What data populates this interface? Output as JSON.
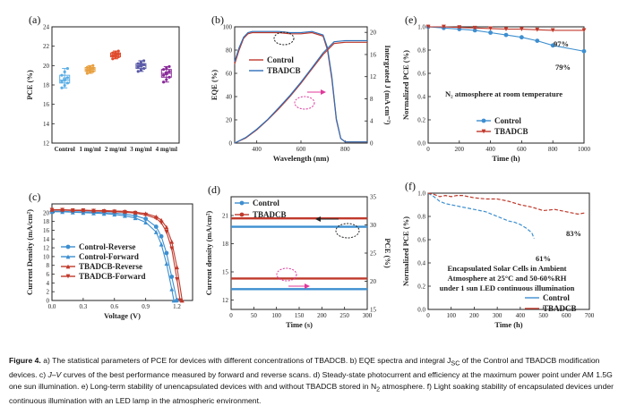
{
  "caption": {
    "lead": "Figure 4.",
    "text": "a) The statistical parameters of PCE for devices with different concentrations of TBADCB. b) EQE spectra and integral J<sub>SC</sub> of the Control and TBADCB modification devices. c) <i>J–V</i> curves of the best performance measured by forward and reverse scans. d) Steady-state photocurrent and efficiency at the maximum power point under AM 1.5G one sun illumination. e) Long-term stability of unencapsulated devices with and without TBADCB stored in N<sub>2</sub> atmosphere. f) Light soaking stability of encapsulated devices under continuous illumination with an LED lamp in the atmospheric environment."
  },
  "chart_data": [
    {
      "id": "a",
      "panel_label": "(a)",
      "type": "box",
      "ylabel": "PCE (%)",
      "ylim": [
        12,
        24
      ],
      "yticks": [
        12,
        14,
        16,
        18,
        20,
        22,
        24
      ],
      "categories": [
        "Control",
        "1 mg/ml",
        "2 mg/ml",
        "3 mg/ml",
        "4 mg/ml"
      ],
      "colors": [
        "#5aaee6",
        "#e8a040",
        "#e04a2c",
        "#5a5aa8",
        "#8a2a9a"
      ],
      "boxes": [
        {
          "q1": 18.2,
          "median": 18.5,
          "q3": 19.0,
          "min": 17.7,
          "max": 19.7,
          "mean": 18.6
        },
        {
          "q1": 19.4,
          "median": 19.6,
          "q3": 19.8,
          "min": 19.2,
          "max": 20.0,
          "mean": 19.6
        },
        {
          "q1": 20.9,
          "median": 21.1,
          "q3": 21.3,
          "min": 20.7,
          "max": 21.5,
          "mean": 21.1
        },
        {
          "q1": 19.7,
          "median": 20.0,
          "q3": 20.2,
          "min": 19.4,
          "max": 20.5,
          "mean": 20.0
        },
        {
          "q1": 18.8,
          "median": 19.2,
          "q3": 19.6,
          "min": 18.3,
          "max": 19.9,
          "mean": 19.2
        }
      ]
    },
    {
      "id": "b",
      "panel_label": "(b)",
      "type": "line",
      "xlabel": "Wavelength (nm)",
      "ylabel": "EQE (%)",
      "ylabel_right": "Intergrated J (mA cm⁻²)",
      "xlim": [
        300,
        900
      ],
      "xticks": [
        400,
        600,
        800
      ],
      "ylim": [
        0,
        100
      ],
      "yticks": [
        0,
        20,
        40,
        60,
        80,
        100
      ],
      "ylim_right": [
        0,
        21
      ],
      "yticks_right": [
        0,
        4,
        8,
        12,
        16,
        20
      ],
      "legend": [
        "Control",
        "TBADCB"
      ],
      "series": [
        {
          "name": "Control",
          "color": "#c0392b",
          "axis": "left",
          "x": [
            300,
            320,
            340,
            360,
            380,
            400,
            450,
            500,
            550,
            600,
            650,
            700,
            720,
            740,
            760,
            780,
            800,
            850,
            900
          ],
          "y": [
            68,
            80,
            90,
            94,
            95,
            95,
            95,
            95,
            94,
            94,
            95,
            92,
            80,
            55,
            20,
            4,
            1,
            1,
            1
          ]
        },
        {
          "name": "TBADCB",
          "color": "#2e6fb8",
          "axis": "left",
          "x": [
            300,
            320,
            340,
            360,
            380,
            400,
            450,
            500,
            550,
            600,
            650,
            700,
            720,
            740,
            760,
            780,
            800,
            850,
            900
          ],
          "y": [
            70,
            82,
            91,
            95,
            96,
            96,
            96,
            96,
            95,
            95,
            96,
            93,
            82,
            57,
            21,
            4,
            1,
            1,
            1
          ]
        },
        {
          "name": "Control J",
          "color": "#c0392b",
          "axis": "right",
          "x": [
            300,
            350,
            400,
            450,
            500,
            550,
            600,
            650,
            700,
            750,
            800,
            900
          ],
          "y": [
            0,
            0.9,
            2.4,
            4.2,
            6.2,
            8.4,
            10.8,
            13.4,
            16.0,
            18.0,
            18.2,
            18.2
          ]
        },
        {
          "name": "TBADCB J",
          "color": "#2e6fb8",
          "axis": "right",
          "x": [
            300,
            350,
            400,
            450,
            500,
            550,
            600,
            650,
            700,
            750,
            800,
            900
          ],
          "y": [
            0,
            1.0,
            2.5,
            4.3,
            6.4,
            8.6,
            11.0,
            13.6,
            16.3,
            18.3,
            18.5,
            18.5
          ]
        }
      ]
    },
    {
      "id": "c",
      "panel_label": "(c)",
      "type": "line",
      "xlabel": "Voltage (V)",
      "ylabel": "Current Density (mA/cm²)",
      "xlim": [
        0,
        1.35
      ],
      "xticks": [
        0.0,
        0.3,
        0.6,
        0.9,
        1.2
      ],
      "ylim": [
        0,
        22
      ],
      "yticks": [
        0,
        2,
        4,
        6,
        8,
        10,
        12,
        14,
        16,
        18,
        20
      ],
      "legend": [
        "Control-Reverse",
        "Control-Forward",
        "TBADCB-Reverse",
        "TBADCB-Forward"
      ],
      "series": [
        {
          "name": "Control-Reverse",
          "color": "#3d8fd0",
          "marker": "circle",
          "x": [
            0,
            0.1,
            0.2,
            0.3,
            0.4,
            0.5,
            0.6,
            0.7,
            0.8,
            0.9,
            1.0,
            1.05,
            1.1,
            1.15,
            1.2
          ],
          "y": [
            20.3,
            20.3,
            20.2,
            20.2,
            20.1,
            20.0,
            19.9,
            19.7,
            19.3,
            18.6,
            16.8,
            14.6,
            10.8,
            5.4,
            0
          ]
        },
        {
          "name": "Control-Forward",
          "color": "#3d8fd0",
          "marker": "triangle",
          "x": [
            0,
            0.1,
            0.2,
            0.3,
            0.4,
            0.5,
            0.6,
            0.7,
            0.8,
            0.9,
            1.0,
            1.05,
            1.1,
            1.15,
            1.17
          ],
          "y": [
            20.2,
            20.2,
            20.1,
            20.0,
            19.9,
            19.8,
            19.6,
            19.3,
            18.8,
            17.8,
            15.6,
            12.8,
            8.4,
            2.6,
            0
          ]
        },
        {
          "name": "TBADCB-Reverse",
          "color": "#c0392b",
          "marker": "triangle",
          "x": [
            0,
            0.1,
            0.2,
            0.3,
            0.4,
            0.5,
            0.6,
            0.7,
            0.8,
            0.9,
            1.0,
            1.05,
            1.1,
            1.15,
            1.2,
            1.25
          ],
          "y": [
            20.7,
            20.7,
            20.6,
            20.6,
            20.5,
            20.5,
            20.4,
            20.3,
            20.1,
            19.8,
            19.1,
            18.3,
            16.7,
            13.4,
            7.6,
            0
          ]
        },
        {
          "name": "TBADCB-Forward",
          "color": "#c0392b",
          "marker": "triangle-down",
          "x": [
            0,
            0.1,
            0.2,
            0.3,
            0.4,
            0.5,
            0.6,
            0.7,
            0.8,
            0.9,
            1.0,
            1.05,
            1.1,
            1.15,
            1.2,
            1.23
          ],
          "y": [
            20.6,
            20.6,
            20.5,
            20.5,
            20.4,
            20.3,
            20.2,
            20.1,
            19.9,
            19.5,
            18.7,
            17.7,
            15.6,
            11.8,
            4.8,
            0
          ]
        }
      ]
    },
    {
      "id": "d",
      "panel_label": "(d)",
      "type": "line",
      "xlabel": "Time (s)",
      "ylabel": "Current density (mA/cm²)",
      "ylabel_right": "PCE (%)",
      "xlim": [
        0,
        300
      ],
      "xticks": [
        0,
        50,
        100,
        150,
        200,
        250,
        300
      ],
      "ylim": [
        11,
        23
      ],
      "yticks": [
        12,
        15,
        18,
        21
      ],
      "ylim_right": [
        15,
        35
      ],
      "yticks_right": [
        15,
        20,
        25,
        30,
        35
      ],
      "legend": [
        "Control",
        "TBADCB"
      ],
      "series": [
        {
          "name": "Control current",
          "color": "#3d8fd0",
          "axis": "left",
          "x": [
            0,
            300
          ],
          "y": [
            19.8,
            19.8
          ]
        },
        {
          "name": "TBADCB current",
          "color": "#c0392b",
          "axis": "left",
          "x": [
            0,
            300
          ],
          "y": [
            20.7,
            20.7
          ]
        },
        {
          "name": "Control PCE",
          "color": "#3d8fd0",
          "axis": "right",
          "x": [
            0,
            300
          ],
          "y": [
            18.6,
            18.6
          ]
        },
        {
          "name": "TBADCB PCE",
          "color": "#c0392b",
          "axis": "right",
          "x": [
            0,
            300
          ],
          "y": [
            20.5,
            20.5
          ]
        }
      ]
    },
    {
      "id": "e",
      "panel_label": "(e)",
      "type": "line",
      "xlabel": "Time (h)",
      "ylabel": "Normalized PCE (%)",
      "xlim": [
        0,
        1000
      ],
      "xticks": [
        0,
        200,
        400,
        600,
        800,
        1000
      ],
      "ylim": [
        0,
        1.0
      ],
      "yticks": [
        0.0,
        0.2,
        0.4,
        0.6,
        0.8,
        1.0
      ],
      "legend": [
        "Control",
        "TBADCB"
      ],
      "annotation": "N₂ atmosphere at room temperature",
      "end_labels": [
        {
          "text": "97%",
          "color": "#c0392b"
        },
        {
          "text": "79%",
          "color": "#3d8fd0"
        }
      ],
      "series": [
        {
          "name": "Control",
          "color": "#3d8fd0",
          "marker": "circle",
          "x": [
            0,
            100,
            200,
            300,
            400,
            500,
            600,
            700,
            800,
            1000
          ],
          "y": [
            1.0,
            0.99,
            0.98,
            0.97,
            0.95,
            0.93,
            0.91,
            0.88,
            0.84,
            0.79
          ]
        },
        {
          "name": "TBADCB",
          "color": "#c0392b",
          "marker": "triangle-down",
          "x": [
            0,
            100,
            200,
            300,
            400,
            500,
            600,
            700,
            800,
            1000
          ],
          "y": [
            1.0,
            1.0,
            0.995,
            0.99,
            0.985,
            0.98,
            0.98,
            0.975,
            0.97,
            0.97
          ]
        }
      ]
    },
    {
      "id": "f",
      "panel_label": "(f)",
      "type": "line",
      "xlabel": "Time (h)",
      "ylabel": "Normalized PCE (%)",
      "xlim": [
        0,
        700
      ],
      "xticks": [
        0,
        100,
        200,
        300,
        400,
        500,
        600,
        700
      ],
      "ylim": [
        0,
        1.0
      ],
      "yticks": [
        0.0,
        0.2,
        0.4,
        0.6,
        0.8,
        1.0
      ],
      "legend": [
        "Control",
        "TBADCB"
      ],
      "annotation_lines": [
        "Encapsulated Solar Cells in Ambient",
        "Atmosphere at 25°C and 50-60%RH",
        "under 1 sun LED continuous illumination"
      ],
      "end_labels": [
        {
          "text": "61%",
          "color": "#3d8fd0"
        },
        {
          "text": "83%",
          "color": "#c0392b"
        }
      ],
      "series": [
        {
          "name": "Control",
          "color": "#3d8fd0",
          "x": [
            0,
            25,
            50,
            75,
            100,
            125,
            150,
            175,
            200,
            225,
            250,
            275,
            300,
            325,
            350,
            375,
            400,
            425,
            450,
            460
          ],
          "y": [
            1.0,
            0.97,
            0.93,
            0.91,
            0.9,
            0.89,
            0.88,
            0.87,
            0.86,
            0.85,
            0.84,
            0.82,
            0.8,
            0.78,
            0.76,
            0.75,
            0.73,
            0.7,
            0.66,
            0.61
          ]
        },
        {
          "name": "TBADCB",
          "color": "#c0392b",
          "x": [
            0,
            25,
            50,
            75,
            100,
            125,
            150,
            175,
            200,
            250,
            300,
            350,
            400,
            450,
            500,
            550,
            600,
            650,
            680
          ],
          "y": [
            1.0,
            0.99,
            0.97,
            0.98,
            0.97,
            0.98,
            0.98,
            0.97,
            0.96,
            0.95,
            0.95,
            0.93,
            0.9,
            0.88,
            0.85,
            0.86,
            0.84,
            0.82,
            0.83
          ]
        }
      ]
    }
  ]
}
